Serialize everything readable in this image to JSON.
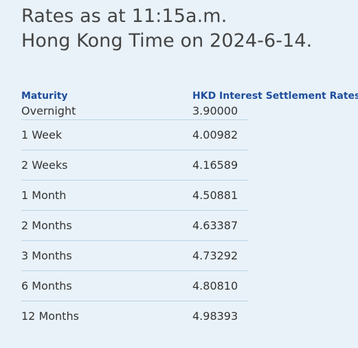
{
  "heading": {
    "line1": "Rates as at 11:15a.m.",
    "line2": "Hong Kong Time on 2024-6-14."
  },
  "table": {
    "headers": {
      "maturity": "Maturity",
      "rate": "HKD Interest Settlement Rates"
    },
    "rows": [
      {
        "maturity": "Overnight",
        "rate": "3.90000"
      },
      {
        "maturity": "1 Week",
        "rate": "4.00982"
      },
      {
        "maturity": "2 Weeks",
        "rate": "4.16589"
      },
      {
        "maturity": "1 Month",
        "rate": "4.50881"
      },
      {
        "maturity": "2 Months",
        "rate": "4.63387"
      },
      {
        "maturity": "3 Months",
        "rate": "4.73292"
      },
      {
        "maturity": "6 Months",
        "rate": "4.80810"
      },
      {
        "maturity": "12 Months",
        "rate": "4.98393"
      }
    ]
  },
  "colors": {
    "background": "#e9f2f9",
    "header_text": "#1f4e9c",
    "divider": "#b9d3e4",
    "body_text": "#333333"
  }
}
